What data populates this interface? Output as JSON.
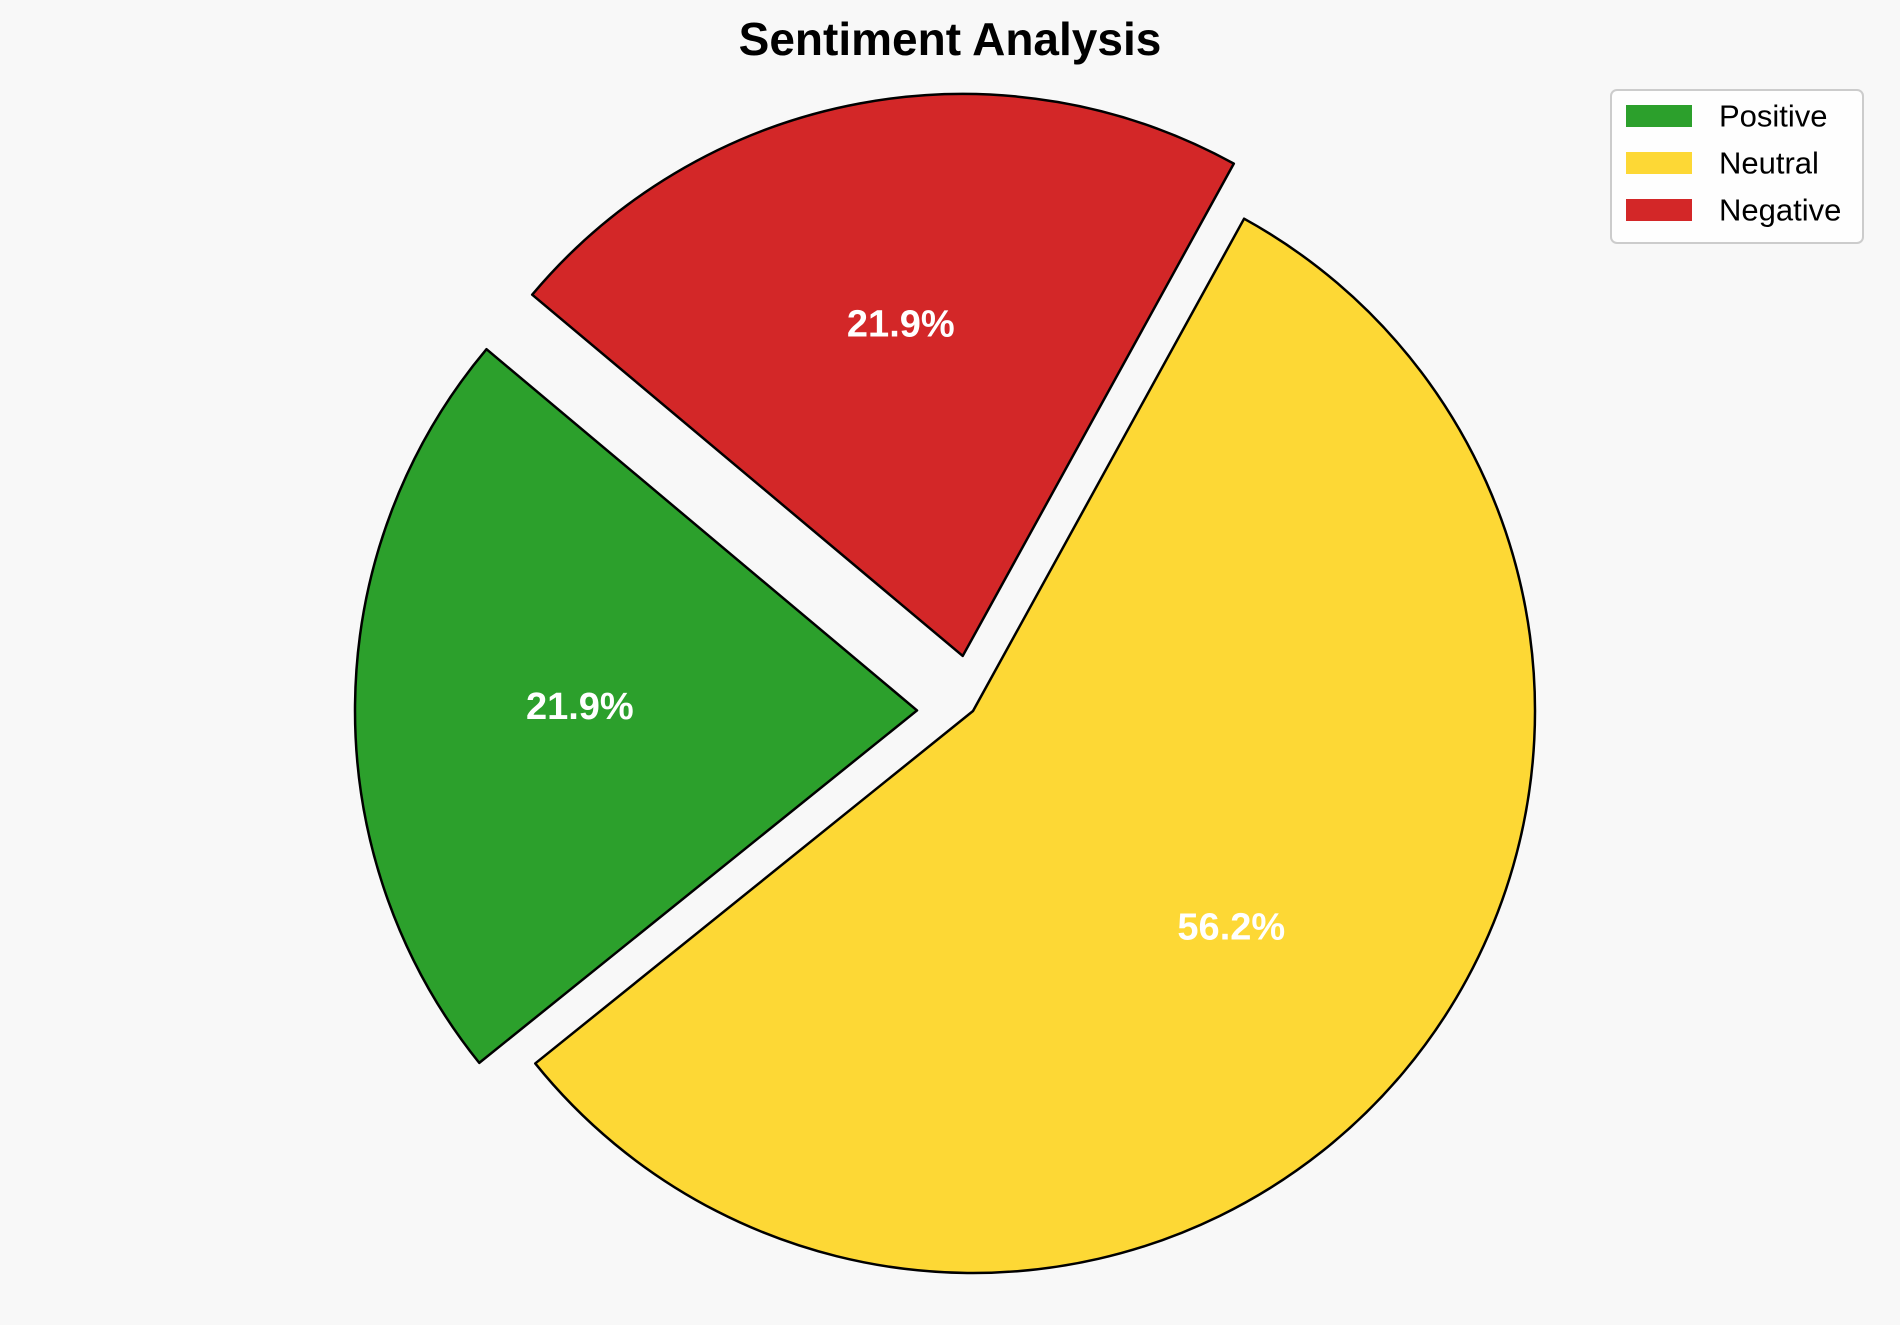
{
  "chart_data": {
    "type": "pie",
    "title": "Sentiment Analysis",
    "slices": [
      {
        "label": "Positive",
        "value": 21.9,
        "value_label": "21.9%",
        "color": "#2ca02c",
        "exploded": true
      },
      {
        "label": "Neutral",
        "value": 56.2,
        "value_label": "56.2%",
        "color": "#fdd835",
        "exploded": false
      },
      {
        "label": "Negative",
        "value": 21.9,
        "value_label": "21.9%",
        "color": "#d32728",
        "exploded": true
      }
    ],
    "legend": {
      "position": "top-right",
      "entries": [
        "Positive",
        "Neutral",
        "Negative"
      ]
    },
    "start_angle_deg": 140,
    "direction": "counterclockwise",
    "edge_color": "#000000"
  }
}
